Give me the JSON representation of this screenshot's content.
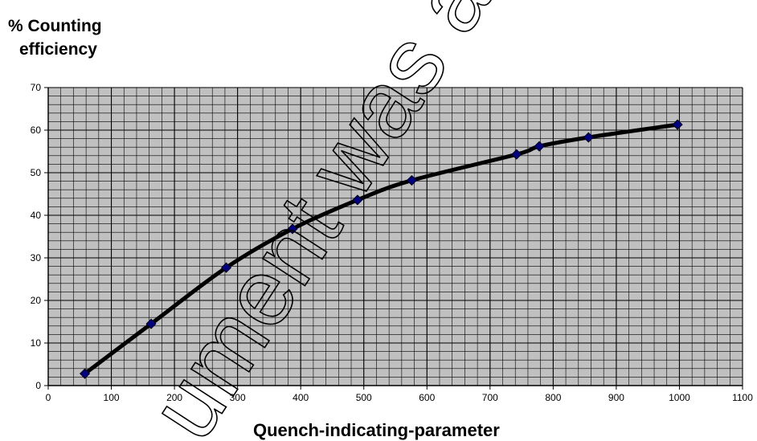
{
  "chart_data": {
    "type": "scatter",
    "xlabel": "Quench-indicating-parameter",
    "ylabel_line1": "% Counting",
    "ylabel_line2": "efficiency",
    "xlim": [
      0,
      1100
    ],
    "ylim": [
      0,
      70
    ],
    "x_ticks": [
      "0",
      "100",
      "200",
      "300",
      "400",
      "500",
      "600",
      "700",
      "800",
      "900",
      "1000",
      "1100"
    ],
    "y_ticks": [
      "0",
      "10",
      "20",
      "30",
      "40",
      "50",
      "60",
      "70"
    ],
    "grid": true,
    "points": [
      {
        "x": 58,
        "y": 2.8
      },
      {
        "x": 163,
        "y": 14.5
      },
      {
        "x": 282,
        "y": 27.7
      },
      {
        "x": 387,
        "y": 36.8
      },
      {
        "x": 490,
        "y": 43.6
      },
      {
        "x": 576,
        "y": 48.2
      },
      {
        "x": 742,
        "y": 54.3
      },
      {
        "x": 778,
        "y": 56.2
      },
      {
        "x": 856,
        "y": 58.3
      },
      {
        "x": 997,
        "y": 61.3
      }
    ],
    "trendline": "smooth curve through points",
    "colors": {
      "plot_background": "#c0c0c0",
      "major_grid": "#000000",
      "minor_grid": "#000000",
      "marker": "#000080",
      "curve": "#000000"
    }
  },
  "watermark": "ument was archived on"
}
